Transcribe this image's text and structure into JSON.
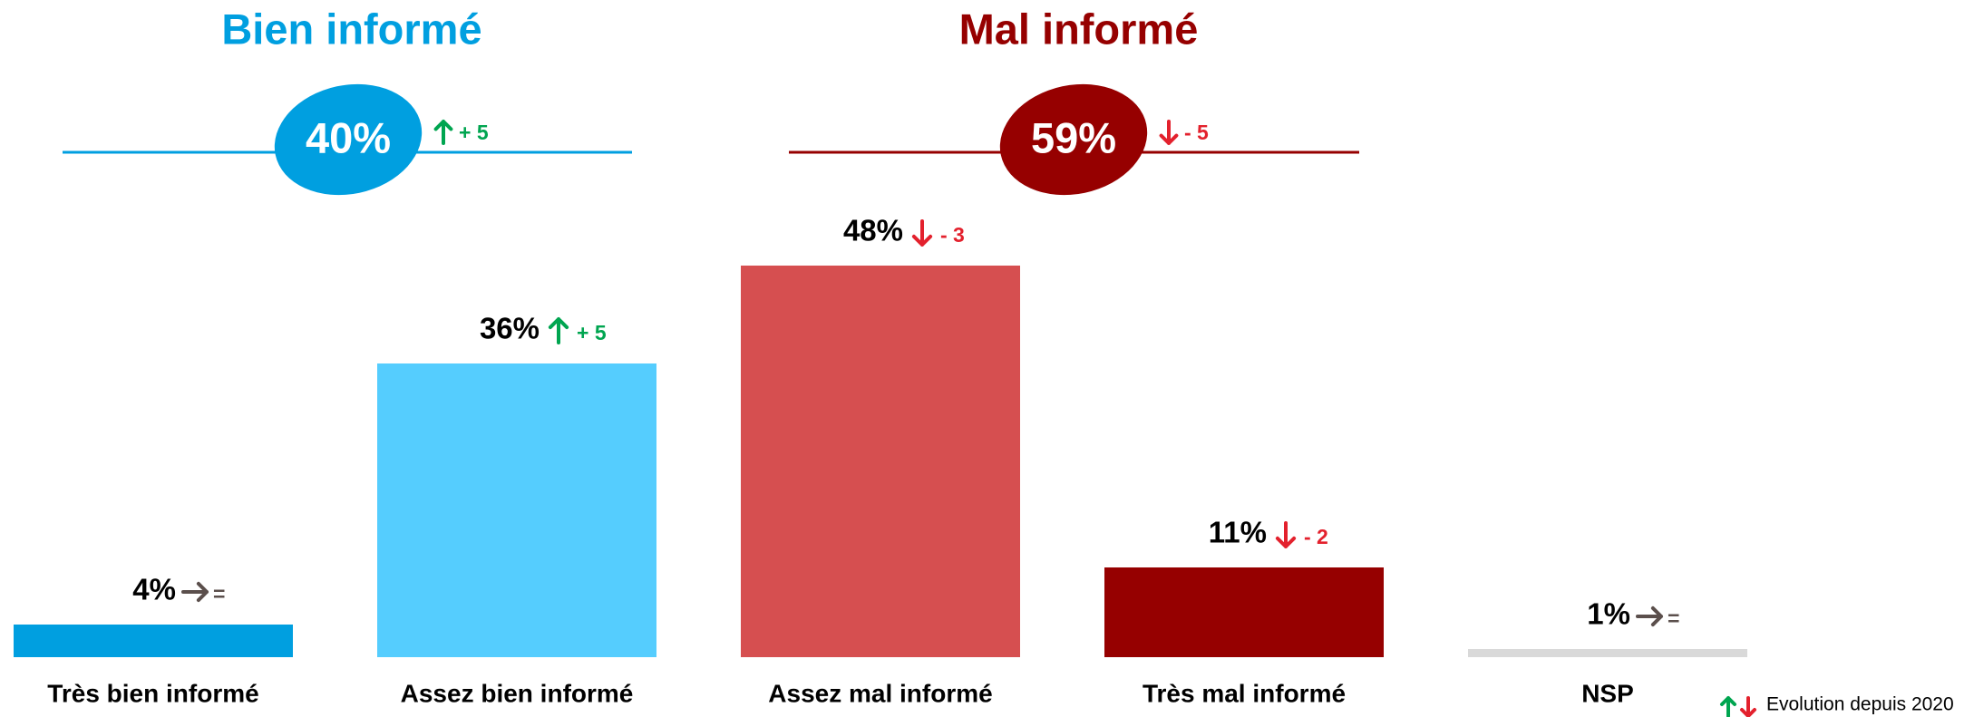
{
  "chart_data": {
    "type": "bar",
    "categories": [
      "Très bien informé",
      "Assez bien informé",
      "Assez mal informé",
      "Très mal informé",
      "NSP"
    ],
    "values": [
      4,
      36,
      48,
      11,
      1
    ],
    "value_labels": [
      "4%",
      "36%",
      "48%",
      "11%",
      "1%"
    ],
    "colors": [
      "#009fe0",
      "#55cdfe",
      "#d64f50",
      "#960000",
      "#d9d9d9"
    ],
    "evolution": {
      "values": [
        0,
        5,
        -3,
        -2,
        0
      ],
      "labels": [
        "=",
        "+ 5",
        "- 3",
        "- 2",
        "="
      ]
    },
    "evolution_colors": {
      "up": "#00a550",
      "down": "#e3212d",
      "flat": "#5b4f4c"
    },
    "groups": [
      {
        "title": "Bien informé",
        "value": 40,
        "value_label": "40%",
        "evolution": 5,
        "evolution_label": "+ 5",
        "color": "#009fe0"
      },
      {
        "title": "Mal informé",
        "value": 59,
        "value_label": "59%",
        "evolution": -5,
        "evolution_label": "- 5",
        "color": "#960000"
      }
    ],
    "legend": "Evolution depuis 2020"
  }
}
